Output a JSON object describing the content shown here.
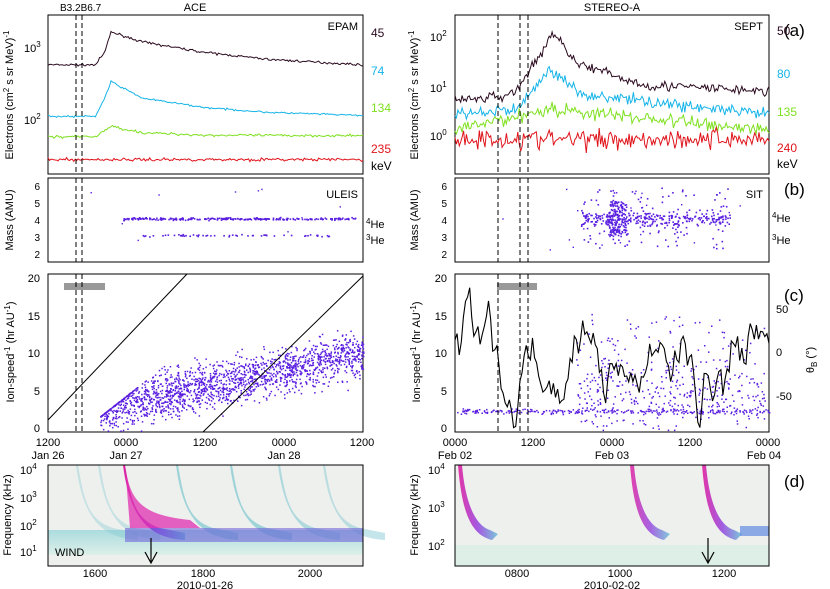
{
  "panel_labels": [
    "(a)",
    "(b)",
    "(c)",
    "(d)"
  ],
  "left": {
    "title": "ACE",
    "shock_marks": "B3.2B6.7",
    "a": {
      "instrument": "EPAM",
      "ylabel_main": "Electrons (cm",
      "ylabel_tail": " s sr MeV)",
      "ylabel_exp1": "2",
      "ylabel_exp2": "-1",
      "channels": [
        "45",
        "74",
        "134",
        "235"
      ],
      "unit": "keV",
      "ticks": [
        {
          "base": "10",
          "exp": "3"
        },
        {
          "base": "10",
          "exp": "2"
        }
      ]
    },
    "b": {
      "instrument": "ULEIS",
      "ylabel": "Mass (AMU)",
      "ticks": [
        "2",
        "3",
        "4",
        "5",
        "6"
      ],
      "iso_he4_sup": "4",
      "iso_he3_sup": "3",
      "iso_name": "He"
    },
    "c": {
      "ylabel_main": "Ion-speed",
      "ylabel_exp": "-1",
      "ylabel_unit": " (hr AU",
      "ylabel_exp2": "-1",
      "ylabel_close": ")",
      "ticks": [
        "0",
        "5",
        "10",
        "15",
        "20"
      ],
      "xticks": [
        "1200",
        "0000",
        "1200",
        "0000",
        "1200"
      ],
      "xdates": [
        "Jan 26",
        "Jan 27",
        "Jan 28"
      ]
    },
    "d": {
      "ylabel": "Frequency (kHz)",
      "label": "WIND",
      "xlabel": "2010-01-26",
      "xticks": [
        "1600",
        "1800",
        "2000"
      ],
      "ticks": [
        {
          "base": "10",
          "exp": "1"
        },
        {
          "base": "10",
          "exp": "2"
        },
        {
          "base": "10",
          "exp": "3"
        },
        {
          "base": "10",
          "exp": "4"
        }
      ]
    }
  },
  "right": {
    "title": "STEREO-A",
    "a": {
      "instrument": "SEPT",
      "ylabel_main": "Electrons (cm",
      "ylabel_tail": " s sr MeV)",
      "ylabel_exp1": "2",
      "ylabel_exp2": "-1",
      "channels": [
        "50",
        "80",
        "135",
        "240"
      ],
      "unit": "keV",
      "ticks": [
        {
          "base": "10",
          "exp": "2"
        },
        {
          "base": "10",
          "exp": "1"
        },
        {
          "base": "10",
          "exp": "0"
        }
      ]
    },
    "b": {
      "instrument": "SIT",
      "ylabel": "Mass (AMU)",
      "ticks": [
        "2",
        "3",
        "4",
        "5",
        "6"
      ],
      "iso_he4_sup": "4",
      "iso_he3_sup": "3",
      "iso_name": "He"
    },
    "c": {
      "ylabel_main": "Ion-speed",
      "ylabel_exp": "-1",
      "ylabel_unit": " (hr AU",
      "ylabel_exp2": "-1",
      "ylabel_close": ")",
      "ticks": [
        "0",
        "5",
        "10",
        "15",
        "20"
      ],
      "y2label_main": "θ",
      "y2label_sub": "B",
      "y2label_unit": " (°)",
      "y2ticks": [
        "50",
        "0",
        "-50"
      ],
      "xticks": [
        "0000",
        "1200",
        "0000",
        "1200",
        "0000"
      ],
      "xdates": [
        "Feb 02",
        "Feb 03",
        "Feb 04"
      ]
    },
    "d": {
      "ylabel": "Frequency (kHz)",
      "xlabel": "2010-02-02",
      "xticks": [
        "0800",
        "1000",
        "1200"
      ],
      "ticks": [
        {
          "base": "10",
          "exp": "2"
        },
        {
          "base": "10",
          "exp": "3"
        },
        {
          "base": "10",
          "exp": "4"
        }
      ]
    }
  },
  "colors": {
    "ch1": "#2b0a1f",
    "ch2": "#16b4e8",
    "ch3": "#7fe020",
    "ch4": "#e0141b",
    "points": "#5a1ee0",
    "bar": "#999999"
  },
  "chart_data": [
    {
      "type": "line",
      "panel": "a-left",
      "instrument": "EPAM",
      "y_scale": "log",
      "ylim": [
        20,
        2500
      ],
      "series": [
        {
          "name": "45",
          "x": [
            0,
            0.15,
            0.18,
            0.2,
            0.3,
            0.5,
            0.7,
            1.0
          ],
          "values": [
            550,
            550,
            800,
            1500,
            1100,
            800,
            650,
            550
          ]
        },
        {
          "name": "74",
          "x": [
            0,
            0.15,
            0.18,
            0.2,
            0.3,
            0.5,
            0.7,
            1.0
          ],
          "values": [
            115,
            115,
            200,
            330,
            200,
            150,
            130,
            118
          ]
        },
        {
          "name": "134",
          "x": [
            0,
            0.15,
            0.18,
            0.2,
            0.3,
            0.5,
            1.0
          ],
          "values": [
            62,
            62,
            75,
            85,
            70,
            65,
            64
          ]
        },
        {
          "name": "235",
          "x": [
            0,
            1.0
          ],
          "values": [
            31,
            31
          ]
        }
      ]
    },
    {
      "type": "line",
      "panel": "a-right",
      "instrument": "SEPT",
      "y_scale": "log",
      "ylim": [
        0.2,
        300
      ],
      "series": [
        {
          "name": "50",
          "x": [
            0,
            0.15,
            0.2,
            0.28,
            0.31,
            0.4,
            0.6,
            1.0
          ],
          "values": [
            6,
            7,
            10,
            60,
            130,
            30,
            12,
            9
          ]
        },
        {
          "name": "80",
          "x": [
            0,
            0.2,
            0.3,
            0.4,
            1.0
          ],
          "values": [
            3,
            4,
            25,
            8,
            3
          ]
        },
        {
          "name": "135",
          "x": [
            0,
            0.3,
            1.0
          ],
          "values": [
            1.5,
            4,
            1.5
          ]
        },
        {
          "name": "240",
          "x": [
            0,
            1.0
          ],
          "values": [
            1.0,
            1.0
          ]
        }
      ]
    },
    {
      "type": "scatter",
      "panel": "b-left",
      "instrument": "ULEIS",
      "ylim": [
        2,
        6
      ],
      "series": [
        {
          "values": [
            4,
            3
          ]
        }
      ]
    },
    {
      "type": "scatter",
      "panel": "b-right",
      "instrument": "SIT",
      "ylim": [
        2,
        6
      ],
      "series": [
        {
          "values": [
            4,
            3
          ]
        }
      ]
    },
    {
      "type": "scatter",
      "panel": "c-left",
      "ylim": [
        0,
        20
      ],
      "xticks": [
        "1200",
        "0000",
        "1200",
        "0000",
        "1200"
      ]
    },
    {
      "type": "scatter",
      "panel": "c-right",
      "ylim": [
        0,
        20
      ],
      "y2lim": [
        -90,
        90
      ]
    },
    {
      "type": "heatmap",
      "panel": "d-left",
      "xlabel": "2010-01-26",
      "y_scale": "log",
      "ylim": [
        7,
        15000
      ]
    },
    {
      "type": "heatmap",
      "panel": "d-right",
      "xlabel": "2010-02-02",
      "y_scale": "log",
      "ylim": [
        40,
        15000
      ]
    }
  ]
}
